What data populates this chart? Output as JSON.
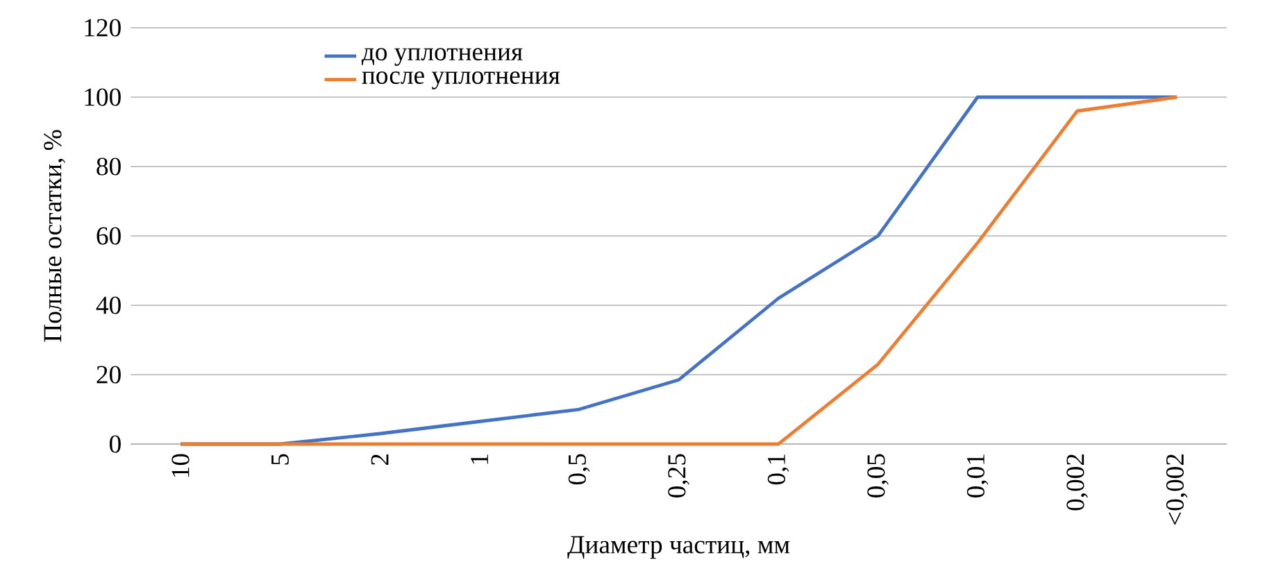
{
  "chart_data": {
    "type": "line",
    "xlabel": "Диаметр частиц, мм",
    "ylabel": "Полные остатки, %",
    "categories": [
      "10",
      "5",
      "2",
      "1",
      "0,5",
      "0,25",
      "0,1",
      "0,05",
      "0,01",
      "0,002",
      "<0,002"
    ],
    "series": [
      {
        "name": "до уплотнения",
        "color": "#4472c4",
        "values": [
          0,
          0,
          3,
          6.5,
          10,
          18.5,
          42,
          60,
          100,
          100,
          100
        ]
      },
      {
        "name": "после уплотнения",
        "color": "#ed7d31",
        "values": [
          0,
          0,
          0,
          0,
          0,
          0,
          0,
          23,
          58,
          96,
          100
        ]
      }
    ],
    "ylim": [
      0,
      120
    ],
    "yticks": [
      0,
      20,
      40,
      60,
      80,
      100,
      120
    ],
    "grid": "y",
    "legend": "top left",
    "marker": "none",
    "line_style": "solid"
  }
}
